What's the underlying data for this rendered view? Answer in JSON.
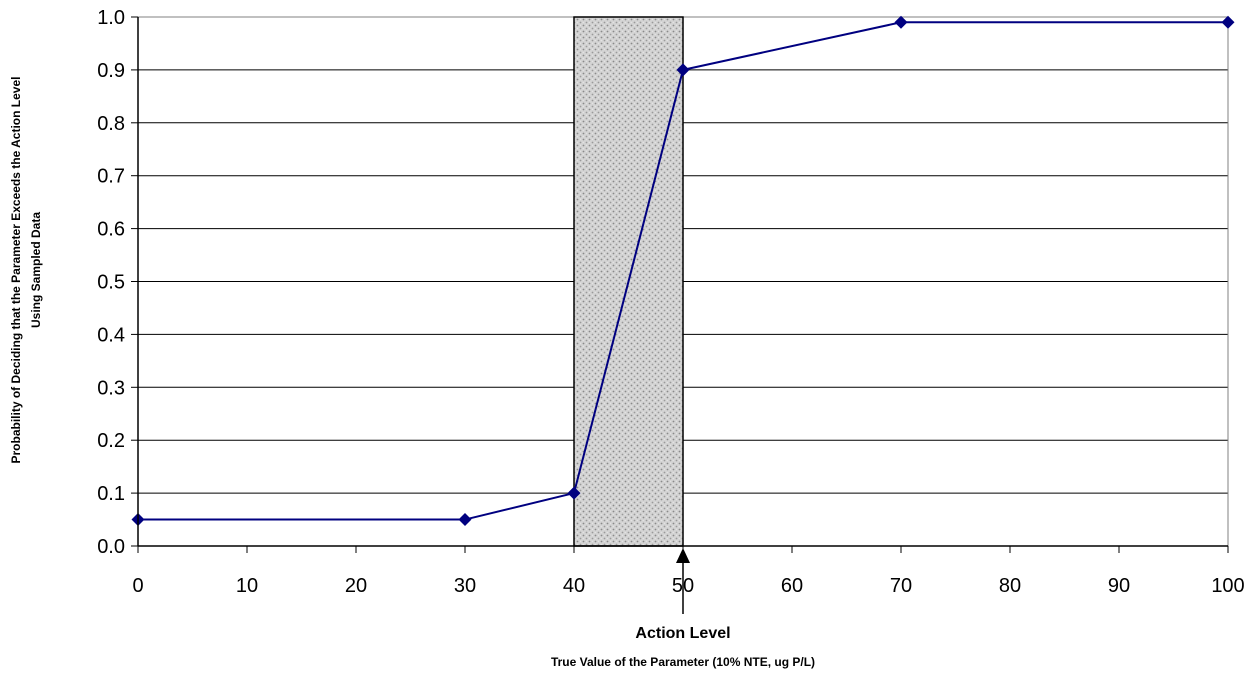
{
  "chart_data": {
    "type": "line",
    "x": [
      0,
      30,
      40,
      50,
      70,
      100
    ],
    "y": [
      0.05,
      0.05,
      0.1,
      0.9,
      0.99,
      0.99
    ],
    "xlim": [
      0,
      100
    ],
    "ylim": [
      0,
      1
    ],
    "xticks": [
      "0",
      "10",
      "20",
      "30",
      "40",
      "50",
      "60",
      "70",
      "80",
      "90",
      "100"
    ],
    "yticks": [
      "0.0",
      "0.1",
      "0.2",
      "0.3",
      "0.4",
      "0.5",
      "0.6",
      "0.7",
      "0.8",
      "0.9",
      "1.0"
    ],
    "xlabel": "True Value of the Parameter (10% NTE, ug P/L)",
    "ylabel_line1": "Probability of Deciding that the Parameter Exceeds the Action Level",
    "ylabel_line2": "Using Sampled Data",
    "gray_region": [
      40,
      50
    ],
    "annotation": {
      "text": "Action Level",
      "x": 50
    },
    "grid": true,
    "series_color": "#000080",
    "region_color": "#c8c8c8"
  }
}
